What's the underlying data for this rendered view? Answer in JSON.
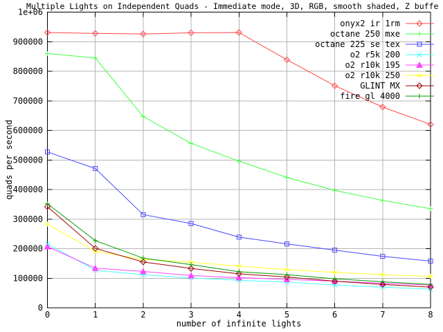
{
  "chart_data": {
    "type": "line",
    "title": "Multiple Lights on Independent Quads - Immediate mode, 3D, RGB, smooth shaded, Z buffe",
    "xlabel": "number of infinite lights",
    "ylabel": "quads per second",
    "xlim": [
      0,
      8
    ],
    "ylim": [
      0,
      1000000
    ],
    "grid": true,
    "legend_position": "top-right",
    "background": "#ffffff",
    "grid_color": "#b4b4b4",
    "text_color": "#000000",
    "x": [
      0,
      1,
      2,
      3,
      4,
      5,
      6,
      7,
      8
    ],
    "x_tick_labels": [
      "0",
      "1",
      "2",
      "3",
      "4",
      "5",
      "6",
      "7",
      "8"
    ],
    "y_tick_labels": [
      "1e+06",
      "900000",
      "800000",
      "700000",
      "600000",
      "500000",
      "400000",
      "300000",
      "200000",
      "100000",
      "0"
    ],
    "series": [
      {
        "name": "onyx2 ir 1rm",
        "color": "#ff4545",
        "marker": "diamond-open",
        "values": [
          931000,
          928000,
          926000,
          930000,
          931000,
          839000,
          751000,
          679000,
          620000
        ]
      },
      {
        "name": "octane 250 mxe",
        "color": "#3dff3d",
        "marker": "plus",
        "values": [
          860000,
          845000,
          647000,
          556000,
          496000,
          441000,
          397000,
          363000,
          335000
        ]
      },
      {
        "name": "octane 225 se tex",
        "color": "#4545ff",
        "marker": "square-open",
        "values": [
          527000,
          471000,
          315000,
          285000,
          239000,
          216000,
          195000,
          174000,
          158000
        ]
      },
      {
        "name": "o2 r5k 200",
        "color": "#45ffff",
        "marker": "cross",
        "values": [
          216000,
          127000,
          112000,
          101000,
          93000,
          87000,
          77000,
          70000,
          63000
        ]
      },
      {
        "name": "o2 r10k 195",
        "color": "#ff45ff",
        "marker": "triangle-filled",
        "values": [
          207000,
          134000,
          123000,
          109000,
          102000,
          96000,
          90000,
          83000,
          77000
        ]
      },
      {
        "name": "o2 r10k 250",
        "color": "#ffff2e",
        "marker": "asterisk",
        "values": [
          283000,
          191000,
          164000,
          154000,
          141000,
          129000,
          120000,
          112000,
          106000
        ]
      },
      {
        "name": "GLINT MX",
        "color": "#9c0000",
        "marker": "diamond-open",
        "values": [
          342000,
          201000,
          155000,
          133000,
          115000,
          104000,
          90000,
          79000,
          70000
        ]
      },
      {
        "name": "fire gl 4000",
        "color": "#009c00",
        "marker": "plus",
        "values": [
          352000,
          227000,
          168000,
          146000,
          122000,
          112000,
          98000,
          88000,
          79000
        ]
      }
    ]
  }
}
